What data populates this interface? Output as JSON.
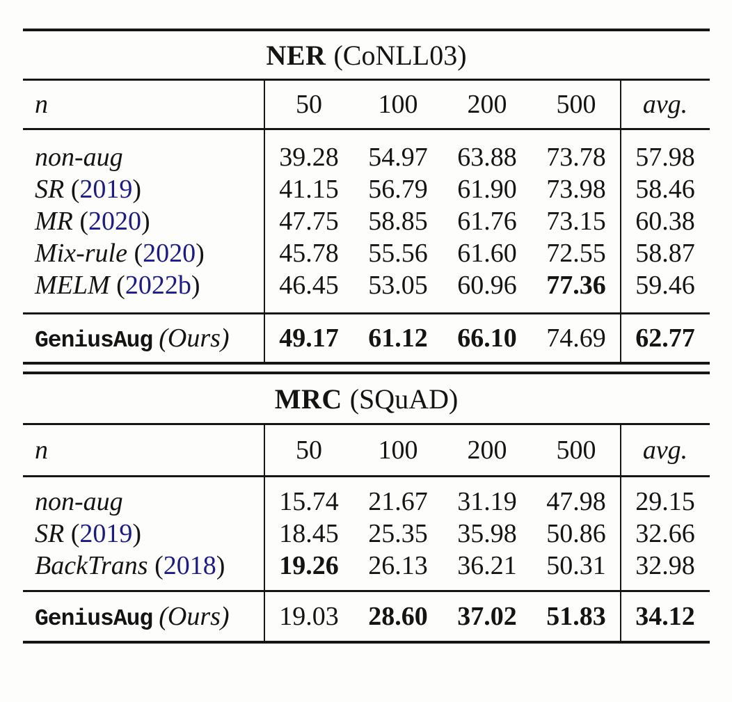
{
  "colors": {
    "background": "#fdfdfc",
    "text": "#141414",
    "rule": "#161616",
    "citation_link": "#1a1a8c"
  },
  "tables": [
    {
      "title": {
        "task": "NER",
        "dataset": "(CoNLL03)"
      },
      "header": {
        "n": "n",
        "sizes": [
          "50",
          "100",
          "200",
          "500"
        ],
        "avg": "avg."
      },
      "methods": [
        {
          "label": "non-aug",
          "year": "",
          "values": [
            "39.28",
            "54.97",
            "63.88",
            "73.78",
            "57.98"
          ],
          "bold": [
            false,
            false,
            false,
            false,
            false
          ]
        },
        {
          "label": "SR",
          "year": "2019",
          "values": [
            "41.15",
            "56.79",
            "61.90",
            "73.98",
            "58.46"
          ],
          "bold": [
            false,
            false,
            false,
            false,
            false
          ]
        },
        {
          "label": "MR",
          "year": "2020",
          "values": [
            "47.75",
            "58.85",
            "61.76",
            "73.15",
            "60.38"
          ],
          "bold": [
            false,
            false,
            false,
            false,
            false
          ]
        },
        {
          "label": "Mix-rule",
          "year": "2020",
          "values": [
            "45.78",
            "55.56",
            "61.60",
            "72.55",
            "58.87"
          ],
          "bold": [
            false,
            false,
            false,
            false,
            false
          ]
        },
        {
          "label": "MELM",
          "year": "2022b",
          "values": [
            "46.45",
            "53.05",
            "60.96",
            "77.36",
            "59.46"
          ],
          "bold": [
            false,
            false,
            false,
            true,
            false
          ]
        }
      ],
      "ours": {
        "name": "GeniusAug",
        "suffix": "(Ours)",
        "values": [
          "49.17",
          "61.12",
          "66.10",
          "74.69",
          "62.77"
        ],
        "bold": [
          true,
          true,
          true,
          false,
          true
        ]
      }
    },
    {
      "title": {
        "task": "MRC",
        "dataset": "(SQuAD)"
      },
      "header": {
        "n": "n",
        "sizes": [
          "50",
          "100",
          "200",
          "500"
        ],
        "avg": "avg."
      },
      "methods": [
        {
          "label": "non-aug",
          "year": "",
          "values": [
            "15.74",
            "21.67",
            "31.19",
            "47.98",
            "29.15"
          ],
          "bold": [
            false,
            false,
            false,
            false,
            false
          ]
        },
        {
          "label": "SR",
          "year": "2019",
          "values": [
            "18.45",
            "25.35",
            "35.98",
            "50.86",
            "32.66"
          ],
          "bold": [
            false,
            false,
            false,
            false,
            false
          ]
        },
        {
          "label": "BackTrans",
          "year": "2018",
          "values": [
            "19.26",
            "26.13",
            "36.21",
            "50.31",
            "32.98"
          ],
          "bold": [
            true,
            false,
            false,
            false,
            false
          ]
        }
      ],
      "ours": {
        "name": "GeniusAug",
        "suffix": "(Ours)",
        "values": [
          "19.03",
          "28.60",
          "37.02",
          "51.83",
          "34.12"
        ],
        "bold": [
          false,
          true,
          true,
          true,
          true
        ]
      }
    }
  ]
}
